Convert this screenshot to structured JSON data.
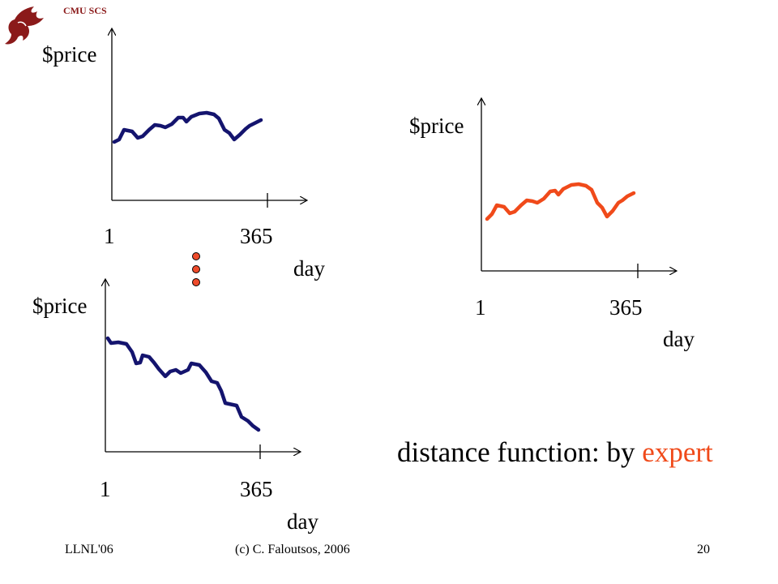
{
  "header": {
    "logo_text": "CMU SCS",
    "logo_icon": "dragon-logo-icon",
    "logo_color": "#8b1a1a"
  },
  "charts": [
    {
      "y_label": "$price",
      "x_start": "1",
      "x_end": "365",
      "x_label": "day",
      "color": "#14146e"
    },
    {
      "y_label": "$price",
      "x_start": "1",
      "x_end": "365",
      "x_label": "day",
      "color": "#f04a1a"
    },
    {
      "y_label": "$price",
      "x_start": "1",
      "x_end": "365",
      "x_label": "day",
      "color": "#14146e"
    }
  ],
  "ellipsis_color": "#ee4b2b",
  "caption": {
    "prefix": "distance function: by ",
    "highlight": "expert",
    "highlight_color": "#f04a1a"
  },
  "footer": {
    "left": "LLNL'06",
    "center": "(c) C. Faloutsos, 2006",
    "page": "20"
  }
}
